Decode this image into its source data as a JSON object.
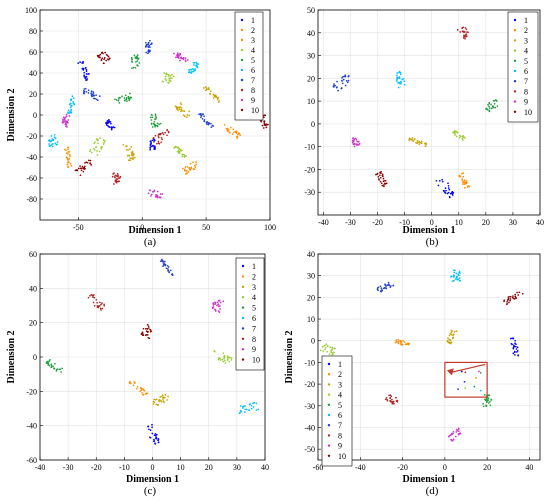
{
  "legend_labels": [
    "1",
    "2",
    "3",
    "4",
    "5",
    "6",
    "7",
    "8",
    "9",
    "10"
  ],
  "colors": [
    "#0000ff",
    "#ff8c00",
    "#c8a200",
    "#9acd32",
    "#1e9e3a",
    "#00bfff",
    "#1f3fcc",
    "#b22222",
    "#cc33cc",
    "#8b0000"
  ],
  "chart_data": [
    {
      "type": "scatter",
      "caption": "(a)",
      "xlabel": "Dimension 1",
      "ylabel": "Dimension 2",
      "xlim": [
        -80,
        100
      ],
      "ylim": [
        -100,
        100
      ],
      "xticks": [
        -50,
        0,
        50,
        100
      ],
      "yticks": [
        -80,
        -60,
        -40,
        -20,
        0,
        20,
        40,
        60,
        80,
        100
      ],
      "grid": true,
      "legend_placement": "top-right",
      "clusters": [
        {
          "label": "1",
          "x": -25,
          "y": -10
        },
        {
          "label": "1",
          "x": 8,
          "y": -28
        },
        {
          "label": "1",
          "x": -45,
          "y": 42
        },
        {
          "label": "2",
          "x": 70,
          "y": -15
        },
        {
          "label": "2",
          "x": -58,
          "y": -40
        },
        {
          "label": "2",
          "x": 38,
          "y": -50
        },
        {
          "label": "3",
          "x": 32,
          "y": 5
        },
        {
          "label": "3",
          "x": -10,
          "y": -35
        },
        {
          "label": "3",
          "x": 55,
          "y": 20
        },
        {
          "label": "4",
          "x": 20,
          "y": 35
        },
        {
          "label": "4",
          "x": -35,
          "y": -30
        },
        {
          "label": "4",
          "x": 30,
          "y": -35
        },
        {
          "label": "5",
          "x": -15,
          "y": 15
        },
        {
          "label": "5",
          "x": 10,
          "y": -5
        },
        {
          "label": "5",
          "x": -5,
          "y": 50
        },
        {
          "label": "6",
          "x": -70,
          "y": -25
        },
        {
          "label": "6",
          "x": -55,
          "y": 10
        },
        {
          "label": "6",
          "x": 40,
          "y": 45
        },
        {
          "label": "7",
          "x": -40,
          "y": 20
        },
        {
          "label": "7",
          "x": 5,
          "y": 65
        },
        {
          "label": "7",
          "x": 50,
          "y": -5
        },
        {
          "label": "8",
          "x": -20,
          "y": -60
        },
        {
          "label": "8",
          "x": 15,
          "y": -20
        },
        {
          "label": "9",
          "x": 10,
          "y": -75
        },
        {
          "label": "9",
          "x": -60,
          "y": -5
        },
        {
          "label": "9",
          "x": 30,
          "y": 55
        },
        {
          "label": "10",
          "x": -30,
          "y": 55
        },
        {
          "label": "10",
          "x": 95,
          "y": -5
        },
        {
          "label": "10",
          "x": -45,
          "y": -50
        }
      ]
    },
    {
      "type": "scatter",
      "caption": "(b)",
      "xlabel": "Dimension 1",
      "ylabel": "",
      "xlim": [
        -42,
        40
      ],
      "ylim": [
        -40,
        50
      ],
      "xticks": [
        -40,
        -30,
        -20,
        -10,
        0,
        10,
        20,
        30,
        40
      ],
      "yticks": [
        -30,
        -20,
        -10,
        0,
        10,
        20,
        30,
        40,
        50
      ],
      "grid": true,
      "legend_placement": "top-right",
      "clusters": [
        {
          "label": "1",
          "x": 5,
          "y": -28
        },
        {
          "label": "2",
          "x": 12,
          "y": -25
        },
        {
          "label": "3",
          "x": -5,
          "y": -8
        },
        {
          "label": "4",
          "x": 10,
          "y": -5
        },
        {
          "label": "5",
          "x": 22,
          "y": 8
        },
        {
          "label": "6",
          "x": -12,
          "y": 20
        },
        {
          "label": "7",
          "x": -33,
          "y": 18
        },
        {
          "label": "8",
          "x": 12,
          "y": 40
        },
        {
          "label": "9",
          "x": -28,
          "y": -8
        },
        {
          "label": "10",
          "x": -18,
          "y": -25
        }
      ]
    },
    {
      "type": "scatter",
      "caption": "(c)",
      "xlabel": "Dimension 1",
      "ylabel": "Dimension 2",
      "xlim": [
        -40,
        40
      ],
      "ylim": [
        -60,
        60
      ],
      "xticks": [
        -40,
        -30,
        -20,
        -10,
        0,
        10,
        20,
        30,
        40
      ],
      "yticks": [
        -60,
        -40,
        -20,
        0,
        20,
        40,
        60
      ],
      "grid": true,
      "legend_placement": "top-right",
      "clusters": [
        {
          "label": "1",
          "x": 0,
          "y": -45
        },
        {
          "label": "2",
          "x": -5,
          "y": -18
        },
        {
          "label": "3",
          "x": 3,
          "y": -25
        },
        {
          "label": "4",
          "x": 25,
          "y": 0
        },
        {
          "label": "5",
          "x": -35,
          "y": -5
        },
        {
          "label": "6",
          "x": 34,
          "y": -30
        },
        {
          "label": "7",
          "x": 5,
          "y": 52
        },
        {
          "label": "8",
          "x": -20,
          "y": 32
        },
        {
          "label": "9",
          "x": 23,
          "y": 30
        },
        {
          "label": "10",
          "x": -2,
          "y": 15
        }
      ]
    },
    {
      "type": "scatter",
      "caption": "(d)",
      "xlabel": "Dimension 1",
      "ylabel": "Dimension 2",
      "xlim": [
        -60,
        45
      ],
      "ylim": [
        -55,
        40
      ],
      "xticks": [
        -60,
        -40,
        -20,
        0,
        20,
        40
      ],
      "yticks": [
        -50,
        -40,
        -30,
        -20,
        -10,
        0,
        10,
        20,
        30,
        40
      ],
      "grid": true,
      "legend_placement": "bottom-left",
      "annotation": {
        "type": "box-with-arrow",
        "box_x": [
          0,
          20
        ],
        "box_y": [
          -26,
          -10
        ]
      },
      "clusters": [
        {
          "label": "1",
          "x": 33,
          "y": -3
        },
        {
          "label": "2",
          "x": -20,
          "y": -1
        },
        {
          "label": "3",
          "x": 3,
          "y": 2
        },
        {
          "label": "4",
          "x": -55,
          "y": -4
        },
        {
          "label": "5",
          "x": 20,
          "y": -28
        },
        {
          "label": "6",
          "x": 5,
          "y": 30
        },
        {
          "label": "7",
          "x": -28,
          "y": 25
        },
        {
          "label": "8",
          "x": -25,
          "y": -27
        },
        {
          "label": "9",
          "x": 5,
          "y": -43
        },
        {
          "label": "10",
          "x": 32,
          "y": 20
        }
      ]
    }
  ]
}
